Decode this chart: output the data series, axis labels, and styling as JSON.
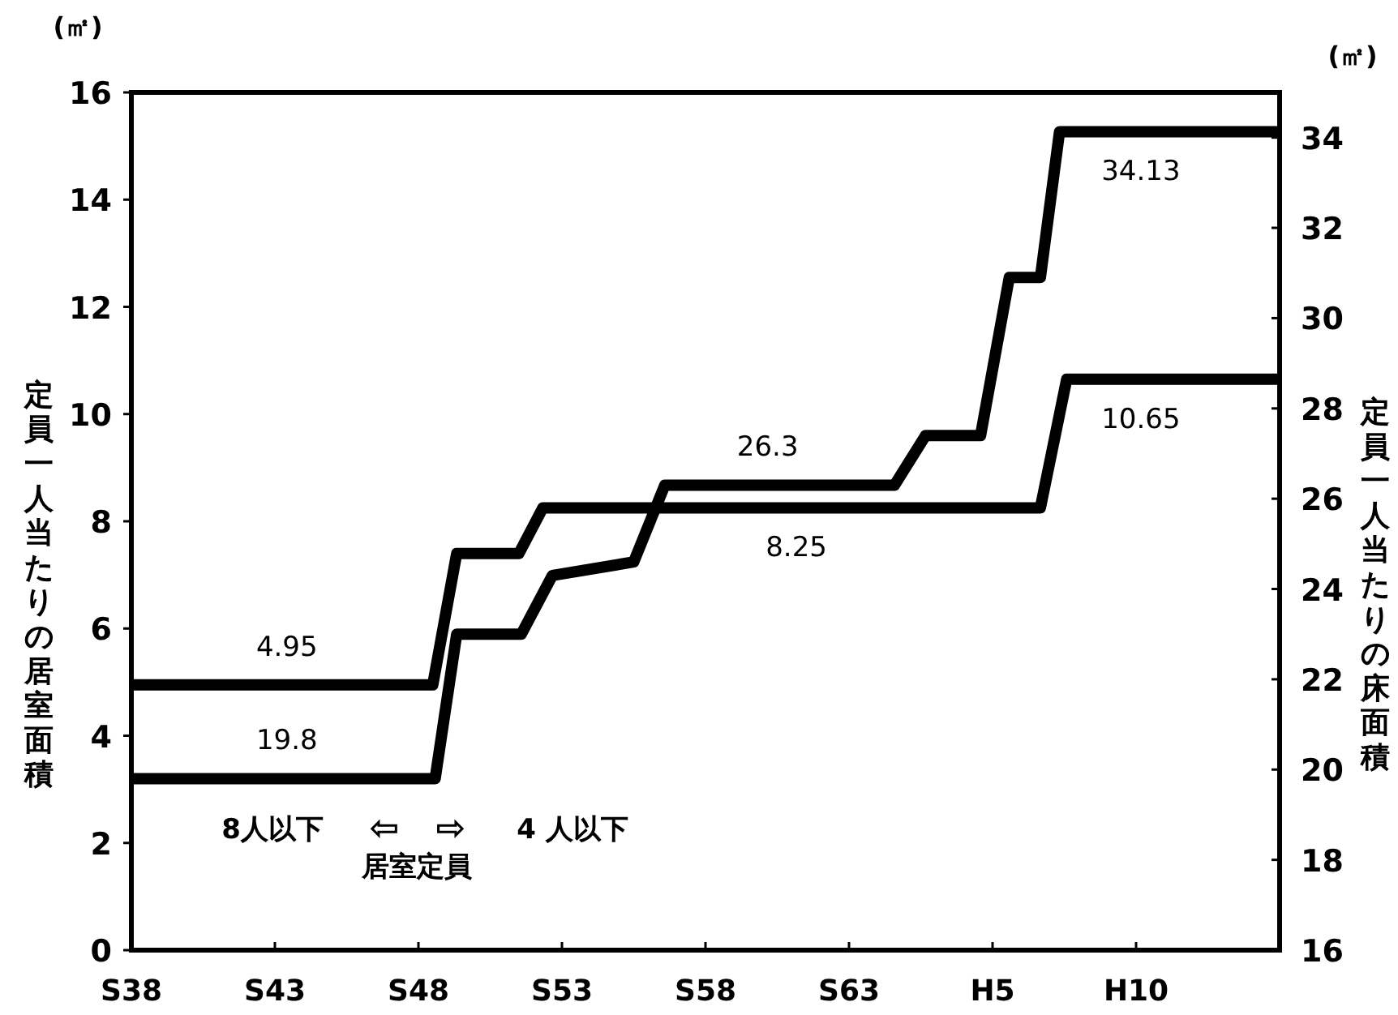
{
  "chart_data": {
    "type": "line",
    "ylabel": "定員一人当たりの居室面積",
    "y2label": "定員一人当たりの床面積",
    "xlim": [
      "1963",
      "2003"
    ],
    "xticks": [
      {
        "value": "1963",
        "label": "S38"
      },
      {
        "value": "1968",
        "label": "S43"
      },
      {
        "value": "1973",
        "label": "S48"
      },
      {
        "value": "1978",
        "label": "S53"
      },
      {
        "value": "1983",
        "label": "S58"
      },
      {
        "value": "1988",
        "label": "S63"
      },
      {
        "value": "1993",
        "label": "H5"
      },
      {
        "value": "1998",
        "label": "H10"
      }
    ],
    "ylim": [
      0,
      16
    ],
    "yticks": [
      0,
      2,
      4,
      6,
      8,
      10,
      12,
      14,
      16
    ],
    "y2lim": [
      16,
      35
    ],
    "y2ticks": [
      16,
      18,
      20,
      22,
      24,
      26,
      28,
      30,
      32,
      34
    ],
    "line_style": "solid",
    "series": [
      {
        "color": "#000000",
        "x": [
          "1963",
          "1968-06",
          "1973-07",
          "1974-05",
          "1976-07",
          "1977-05",
          "1986-03",
          "1994-09",
          "1995-08",
          "1998-03",
          "2003"
        ],
        "values": [
          4.95,
          4.95,
          4.95,
          7.4,
          7.4,
          8.25,
          8.25,
          8.25,
          10.65,
          10.65,
          10.65
        ],
        "value_labels": [
          null,
          "4.95",
          null,
          null,
          null,
          null,
          "8.25",
          null,
          null,
          "10.65",
          null
        ]
      },
      {
        "color": "#000000",
        "axis": "y2",
        "x": [
          "1963",
          "1968-06",
          "1973-08",
          "1974-05",
          "1976-08",
          "1977-09",
          "1980-07",
          "1981-08",
          "1985-03",
          "1989-08",
          "1990-09",
          "1992-08",
          "1993-08",
          "1994-09",
          "1995-05",
          "1998-03",
          "2003"
        ],
        "values": [
          19.8,
          19.8,
          19.8,
          23.0,
          23.0,
          24.3,
          24.6,
          26.3,
          26.3,
          26.3,
          27.4,
          27.4,
          30.9,
          30.9,
          34.13,
          34.13,
          34.13
        ],
        "value_labels": [
          null,
          "19.8",
          null,
          null,
          null,
          null,
          null,
          null,
          "26.3",
          null,
          null,
          null,
          null,
          null,
          null,
          "34.13",
          null
        ]
      }
    ],
    "annotations": [
      "(㎡)",
      "(㎡)",
      "8人以下",
      "⇦",
      "⇨",
      "4 人以下",
      "居室定員"
    ]
  }
}
